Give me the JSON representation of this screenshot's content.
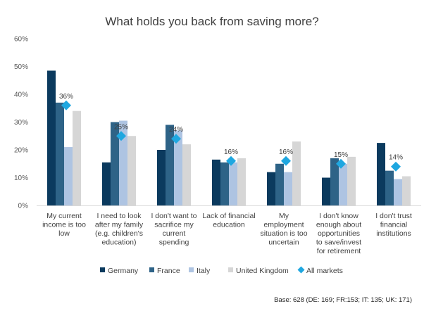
{
  "chart_data": {
    "type": "bar",
    "title": "What holds you back from saving more?",
    "ylim": [
      0,
      60
    ],
    "yticks": [
      0,
      10,
      20,
      30,
      40,
      50,
      60
    ],
    "ytick_labels": [
      "0%",
      "10%",
      "20%",
      "30%",
      "40%",
      "50%",
      "60%"
    ],
    "grid": false,
    "legend_position": "bottom",
    "categories": [
      [
        "My current",
        "income is too",
        "low"
      ],
      [
        "I need to look",
        "after my family",
        "(e.g. children's",
        "education)"
      ],
      [
        "I don't want to",
        "sacrifice my",
        "current",
        "spending"
      ],
      [
        "Lack of financial",
        "education"
      ],
      [
        "My",
        "employment",
        "situation is too",
        "uncertain"
      ],
      [
        "I don't know",
        "enough about",
        "opportunities",
        "to save/invest",
        "for retirement"
      ],
      [
        "I don't trust",
        "financial",
        "institutions"
      ]
    ],
    "series": [
      {
        "name": "Germany",
        "color": "#0b3a5e",
        "values": [
          48.5,
          15.5,
          20,
          16.5,
          12,
          10,
          22.5
        ]
      },
      {
        "name": "France",
        "color": "#2e6387",
        "values": [
          37,
          30,
          29,
          15.5,
          15,
          17,
          12.5
        ]
      },
      {
        "name": "Italy",
        "color": "#aec4e2",
        "values": [
          21,
          30.5,
          27,
          15.5,
          12,
          15,
          9.5
        ]
      },
      {
        "name": "United Kingdom",
        "color": "#d6d6d6",
        "values": [
          34,
          25,
          22,
          17,
          23,
          17.5,
          10.5
        ]
      }
    ],
    "markers": {
      "name": "All markets",
      "color": "#1fa7e0",
      "values": [
        36,
        25,
        24,
        16,
        16,
        15,
        14
      ],
      "labels": [
        "36%",
        "25%",
        "24%",
        "16%",
        "16%",
        "15%",
        "14%"
      ]
    },
    "footnote": "Base: 628 (DE: 169; FR:153; IT: 135; UK: 171)"
  }
}
